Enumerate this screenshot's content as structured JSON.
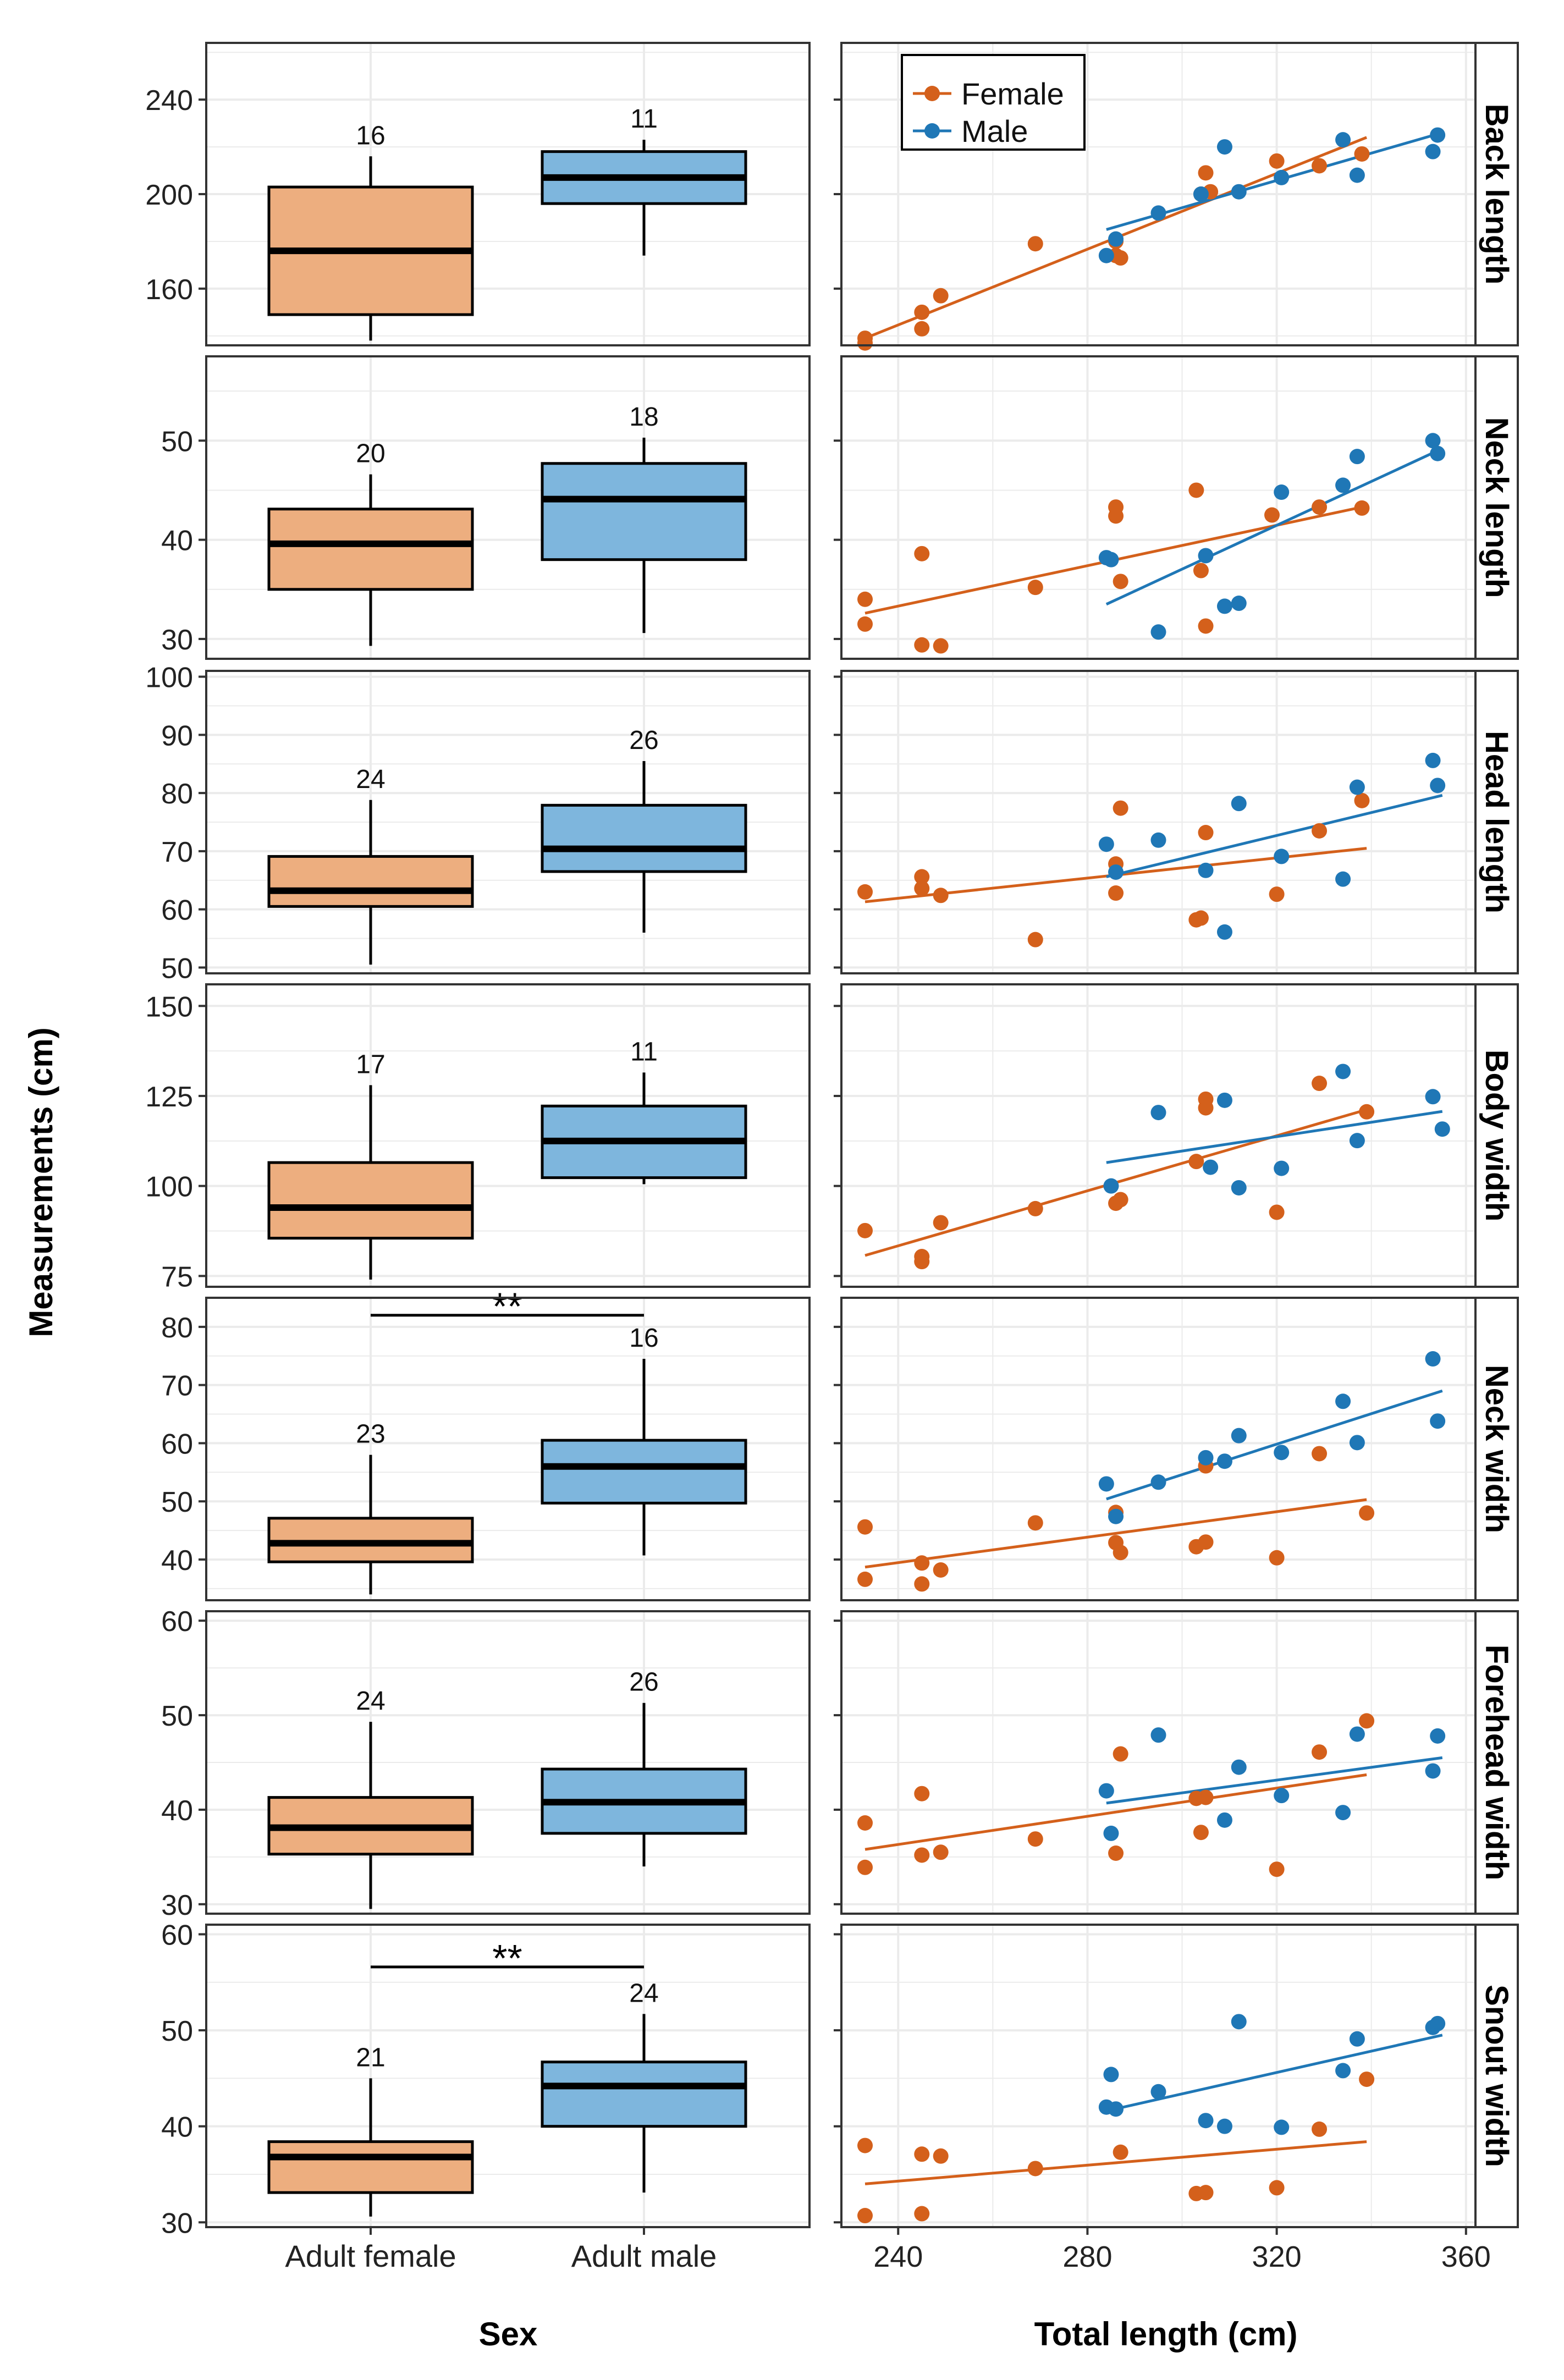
{
  "figure": {
    "y_axis_title": "Measurements (cm)",
    "left_x_title": "Sex",
    "right_x_title": "Total length (cm)",
    "categories": [
      "Adult female",
      "Adult male"
    ],
    "right_ticks": [
      240,
      280,
      320,
      360
    ],
    "right_xlim": [
      228,
      362
    ],
    "legend": {
      "entries": [
        "Female",
        "Male"
      ],
      "position": "top-left"
    },
    "colors": {
      "female_fill": "#edae7f",
      "male_fill": "#7eb6dd",
      "female_point": "#d4601b",
      "male_point": "#1f77b6",
      "strip_bg": "#ffffff",
      "grid": "#ebebeb"
    }
  },
  "chart_data": [
    {
      "panel": "Back length",
      "type": "box+scatter",
      "ylim": [
        136,
        264
      ],
      "yticks": [
        160,
        200,
        240
      ],
      "boxes": [
        {
          "group": "Adult female",
          "n": "16",
          "min": 138,
          "q1": 149,
          "median": 176,
          "q3": 203,
          "max": 216
        },
        {
          "group": "Adult male",
          "n": "11",
          "min": 174,
          "q1": 196,
          "median": 207,
          "q3": 218,
          "max": 223
        }
      ],
      "significance": "",
      "female_points": [
        [
          233,
          139
        ],
        [
          233,
          137
        ],
        [
          245,
          150
        ],
        [
          245,
          143
        ],
        [
          249,
          157
        ],
        [
          269,
          179
        ],
        [
          286,
          174
        ],
        [
          286,
          180
        ],
        [
          287,
          173
        ],
        [
          304,
          200
        ],
        [
          305,
          209
        ],
        [
          306,
          201
        ],
        [
          320,
          214
        ],
        [
          329,
          212
        ],
        [
          338,
          217
        ]
      ],
      "male_points": [
        [
          284,
          174
        ],
        [
          295,
          192
        ],
        [
          304,
          200
        ],
        [
          309,
          220
        ],
        [
          312,
          201
        ],
        [
          321,
          207
        ],
        [
          334,
          223
        ],
        [
          337,
          208
        ],
        [
          353,
          218
        ],
        [
          354,
          225
        ],
        [
          286,
          181
        ]
      ],
      "female_line": [
        [
          233,
          139
        ],
        [
          339,
          224
        ]
      ],
      "male_line": [
        [
          284,
          185
        ],
        [
          355,
          226
        ]
      ]
    },
    {
      "panel": "Neck length",
      "type": "box+scatter",
      "ylim": [
        28,
        58.5
      ],
      "yticks": [
        30,
        40,
        50
      ],
      "boxes": [
        {
          "group": "Adult female",
          "n": "20",
          "min": 29.3,
          "q1": 35,
          "median": 39.6,
          "q3": 43.1,
          "max": 46.6
        },
        {
          "group": "Adult male",
          "n": "18",
          "min": 30.6,
          "q1": 38,
          "median": 44.1,
          "q3": 47.7,
          "max": 50.3
        }
      ],
      "significance": "",
      "female_points": [
        [
          233,
          34
        ],
        [
          233,
          31.5
        ],
        [
          245,
          38.6
        ],
        [
          245,
          29.4
        ],
        [
          249,
          29.3
        ],
        [
          269,
          35.2
        ],
        [
          286,
          43.3
        ],
        [
          286,
          42.4
        ],
        [
          287,
          35.8
        ],
        [
          303,
          45
        ],
        [
          304,
          36.9
        ],
        [
          305,
          31.3
        ],
        [
          319,
          42.5
        ],
        [
          329,
          43.3
        ],
        [
          338,
          43.2
        ]
      ],
      "male_points": [
        [
          284,
          38.2
        ],
        [
          285,
          38
        ],
        [
          295,
          30.7
        ],
        [
          305,
          38.4
        ],
        [
          309,
          33.3
        ],
        [
          312,
          33.6
        ],
        [
          321,
          44.8
        ],
        [
          334,
          45.5
        ],
        [
          337,
          48.4
        ],
        [
          353,
          50
        ],
        [
          354,
          48.7
        ]
      ],
      "female_line": [
        [
          233,
          32.6
        ],
        [
          339,
          43.4
        ]
      ],
      "male_line": [
        [
          284,
          33.5
        ],
        [
          355,
          49.2
        ]
      ]
    },
    {
      "panel": "Head length",
      "type": "box+scatter",
      "ylim": [
        49,
        101
      ],
      "yticks": [
        50,
        60,
        70,
        80,
        90,
        100
      ],
      "boxes": [
        {
          "group": "Adult female",
          "n": "24",
          "min": 50.5,
          "q1": 60.5,
          "median": 63.2,
          "q3": 69.1,
          "max": 78.8
        },
        {
          "group": "Adult male",
          "n": "26",
          "min": 56,
          "q1": 66.5,
          "median": 70.4,
          "q3": 77.9,
          "max": 85.5
        }
      ],
      "significance": "",
      "female_points": [
        [
          233,
          63
        ],
        [
          245,
          65.6
        ],
        [
          245,
          63.6
        ],
        [
          249,
          62.4
        ],
        [
          269,
          54.8
        ],
        [
          286,
          67.8
        ],
        [
          286,
          62.8
        ],
        [
          287,
          77.4
        ],
        [
          303,
          58.2
        ],
        [
          304,
          58.5
        ],
        [
          305,
          73.2
        ],
        [
          320,
          62.6
        ],
        [
          329,
          73.5
        ],
        [
          338,
          78.7
        ]
      ],
      "male_points": [
        [
          284,
          71.2
        ],
        [
          286,
          66.4
        ],
        [
          295,
          71.9
        ],
        [
          305,
          66.7
        ],
        [
          309,
          56.1
        ],
        [
          312,
          78.2
        ],
        [
          321,
          69.1
        ],
        [
          334,
          65.2
        ],
        [
          337,
          81
        ],
        [
          353,
          85.6
        ],
        [
          354,
          81.3
        ]
      ],
      "female_line": [
        [
          233,
          61.3
        ],
        [
          339,
          70.5
        ]
      ],
      "male_line": [
        [
          284,
          65.6
        ],
        [
          355,
          79.6
        ]
      ]
    },
    {
      "panel": "Body width",
      "type": "box+scatter",
      "ylim": [
        72,
        156
      ],
      "yticks": [
        75,
        100,
        125,
        150
      ],
      "boxes": [
        {
          "group": "Adult female",
          "n": "17",
          "min": 74,
          "q1": 85.5,
          "median": 94,
          "q3": 106.5,
          "max": 128
        },
        {
          "group": "Adult male",
          "n": "11",
          "min": 100.5,
          "q1": 102.3,
          "median": 112.5,
          "q3": 122.2,
          "max": 131.5
        }
      ],
      "significance": "",
      "female_points": [
        [
          233,
          87.6
        ],
        [
          245,
          80.4
        ],
        [
          245,
          79
        ],
        [
          249,
          89.8
        ],
        [
          269,
          93.7
        ],
        [
          286,
          95.2
        ],
        [
          287,
          96.2
        ],
        [
          303,
          106.8
        ],
        [
          305,
          124.1
        ],
        [
          305,
          121.7
        ],
        [
          320,
          92.7
        ],
        [
          329,
          128.5
        ],
        [
          339,
          120.6
        ]
      ],
      "male_points": [
        [
          285,
          100
        ],
        [
          295,
          120.4
        ],
        [
          306,
          105.2
        ],
        [
          309,
          123.8
        ],
        [
          312,
          99.5
        ],
        [
          321,
          104.9
        ],
        [
          334,
          131.8
        ],
        [
          337,
          112.6
        ],
        [
          353,
          124.8
        ],
        [
          355,
          115.8
        ]
      ],
      "female_line": [
        [
          233,
          80.7
        ],
        [
          339,
          121.2
        ]
      ],
      "male_line": [
        [
          284,
          106.5
        ],
        [
          355,
          120.7
        ]
      ]
    },
    {
      "panel": "Neck width",
      "type": "box+scatter",
      "ylim": [
        33,
        85
      ],
      "yticks": [
        40,
        50,
        60,
        70,
        80
      ],
      "boxes": [
        {
          "group": "Adult female",
          "n": "23",
          "min": 34,
          "q1": 39.6,
          "median": 42.8,
          "q3": 47.1,
          "max": 58
        },
        {
          "group": "Adult male",
          "n": "16",
          "min": 40.7,
          "q1": 49.7,
          "median": 56,
          "q3": 60.5,
          "max": 74.5
        }
      ],
      "significance": "**",
      "sig_y": 82,
      "female_points": [
        [
          233,
          45.6
        ],
        [
          233,
          36.6
        ],
        [
          245,
          39.4
        ],
        [
          245,
          35.8
        ],
        [
          249,
          38.2
        ],
        [
          269,
          46.3
        ],
        [
          286,
          48.1
        ],
        [
          286,
          42.9
        ],
        [
          287,
          41.2
        ],
        [
          303,
          42.2
        ],
        [
          305,
          43
        ],
        [
          305,
          56.1
        ],
        [
          320,
          40.3
        ],
        [
          329,
          58.2
        ],
        [
          339,
          48
        ]
      ],
      "male_points": [
        [
          284,
          53
        ],
        [
          286,
          47.4
        ],
        [
          295,
          53.3
        ],
        [
          305,
          57.5
        ],
        [
          309,
          56.9
        ],
        [
          312,
          61.3
        ],
        [
          321,
          58.4
        ],
        [
          334,
          67.2
        ],
        [
          337,
          60.1
        ],
        [
          353,
          74.5
        ],
        [
          354,
          63.8
        ]
      ],
      "female_line": [
        [
          233,
          38.7
        ],
        [
          339,
          50.3
        ]
      ],
      "male_line": [
        [
          284,
          50.4
        ],
        [
          355,
          69
        ]
      ]
    },
    {
      "panel": "Forehead width",
      "type": "box+scatter",
      "ylim": [
        29,
        61
      ],
      "yticks": [
        30,
        40,
        50,
        60
      ],
      "boxes": [
        {
          "group": "Adult female",
          "n": "24",
          "min": 29.5,
          "q1": 35.3,
          "median": 38.1,
          "q3": 41.3,
          "max": 49.3
        },
        {
          "group": "Adult male",
          "n": "26",
          "min": 34,
          "q1": 37.5,
          "median": 40.8,
          "q3": 44.3,
          "max": 51.3
        }
      ],
      "significance": "",
      "female_points": [
        [
          233,
          38.6
        ],
        [
          233,
          33.9
        ],
        [
          245,
          41.7
        ],
        [
          245,
          35.2
        ],
        [
          249,
          35.5
        ],
        [
          269,
          36.9
        ],
        [
          286,
          35.4
        ],
        [
          287,
          45.9
        ],
        [
          303,
          41.2
        ],
        [
          304,
          37.6
        ],
        [
          305,
          41.3
        ],
        [
          320,
          33.7
        ],
        [
          329,
          46.1
        ],
        [
          339,
          49.4
        ]
      ],
      "male_points": [
        [
          284,
          42
        ],
        [
          285,
          37.5
        ],
        [
          295,
          47.9
        ],
        [
          309,
          38.9
        ],
        [
          312,
          44.5
        ],
        [
          321,
          41.5
        ],
        [
          334,
          39.7
        ],
        [
          337,
          48
        ],
        [
          353,
          44.1
        ],
        [
          354,
          47.8
        ]
      ],
      "female_line": [
        [
          233,
          35.8
        ],
        [
          339,
          43.7
        ]
      ],
      "male_line": [
        [
          284,
          40.7
        ],
        [
          355,
          45.5
        ]
      ]
    },
    {
      "panel": "Snout width",
      "type": "box+scatter",
      "ylim": [
        29.5,
        61
      ],
      "yticks": [
        30,
        40,
        50,
        60
      ],
      "boxes": [
        {
          "group": "Adult female",
          "n": "21",
          "min": 30.6,
          "q1": 33.1,
          "median": 36.8,
          "q3": 38.4,
          "max": 45
        },
        {
          "group": "Adult male",
          "n": "24",
          "min": 33.1,
          "q1": 40,
          "median": 44.2,
          "q3": 46.7,
          "max": 51.7
        }
      ],
      "significance": "**",
      "sig_y": 56.6,
      "female_points": [
        [
          233,
          38
        ],
        [
          233,
          30.7
        ],
        [
          245,
          37.1
        ],
        [
          245,
          30.9
        ],
        [
          249,
          36.9
        ],
        [
          269,
          35.6
        ],
        [
          287,
          37.3
        ],
        [
          303,
          33
        ],
        [
          305,
          33.1
        ],
        [
          320,
          33.6
        ],
        [
          329,
          39.7
        ],
        [
          339,
          44.9
        ]
      ],
      "male_points": [
        [
          284,
          42
        ],
        [
          285,
          45.4
        ],
        [
          286,
          41.8
        ],
        [
          295,
          43.6
        ],
        [
          305,
          40.6
        ],
        [
          309,
          40
        ],
        [
          312,
          50.9
        ],
        [
          321,
          39.9
        ],
        [
          334,
          45.8
        ],
        [
          337,
          49.1
        ],
        [
          353,
          50.3
        ],
        [
          354,
          50.7
        ]
      ],
      "female_line": [
        [
          233,
          34
        ],
        [
          339,
          38.4
        ]
      ],
      "male_line": [
        [
          284,
          41.6
        ],
        [
          355,
          49.5
        ]
      ]
    }
  ]
}
